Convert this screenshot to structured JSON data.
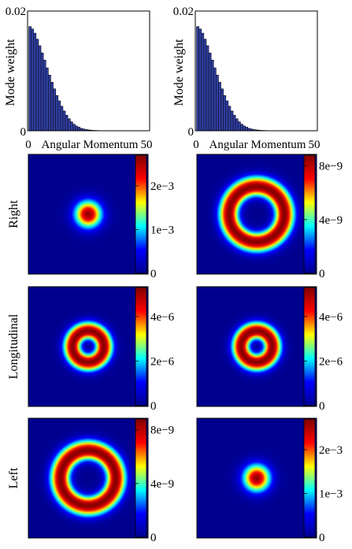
{
  "colors": {
    "bar_fill": "#2f3fa0",
    "bar_edge": "#0b0b1e",
    "colormap": [
      "#00008f",
      "#0000ff",
      "#00ffff",
      "#ffff00",
      "#ff0000",
      "#800000"
    ]
  },
  "chart_data": [
    {
      "type": "bar",
      "title": "",
      "xlabel": "Angular Momentum",
      "ylabel": "Mode weight",
      "xlim": [
        0,
        50
      ],
      "ylim": [
        0,
        0.02
      ],
      "x_ticks": [
        "0",
        "50"
      ],
      "y_ticks": [
        "0",
        "0.02"
      ],
      "grid": false,
      "categories": [
        1,
        2,
        3,
        4,
        5,
        6,
        7,
        8,
        9,
        10,
        11,
        12,
        13,
        14,
        15,
        16,
        17,
        18,
        19,
        20,
        21,
        22,
        23,
        24,
        25,
        26,
        27,
        28,
        29,
        30,
        31,
        32,
        33,
        34,
        35,
        36,
        37,
        38,
        39,
        40,
        41,
        42,
        43,
        44,
        45,
        46,
        47,
        48,
        49
      ],
      "values": [
        0.0174,
        0.017,
        0.0163,
        0.0153,
        0.0142,
        0.013,
        0.0118,
        0.0105,
        0.0093,
        0.0081,
        0.007,
        0.0059,
        0.005,
        0.0041,
        0.0033,
        0.0026,
        0.002,
        0.0015,
        0.0011,
        0.0008,
        0.0006,
        0.0004,
        0.0003,
        0.0002,
        0.00015,
        0.0001,
        7e-05,
        5e-05,
        3e-05,
        2e-05,
        1e-05,
        1e-05,
        1e-05,
        0,
        0,
        0,
        0,
        0,
        0,
        0,
        0,
        0,
        0,
        0,
        0,
        0,
        0,
        0,
        0
      ]
    },
    {
      "type": "bar",
      "title": "",
      "xlabel": "Angular Momentum",
      "ylabel": "Mode weight",
      "xlim": [
        0,
        50
      ],
      "ylim": [
        0,
        0.02
      ],
      "x_ticks": [
        "0",
        "50"
      ],
      "y_ticks": [
        "0",
        "0.02"
      ],
      "grid": false,
      "categories": [
        1,
        2,
        3,
        4,
        5,
        6,
        7,
        8,
        9,
        10,
        11,
        12,
        13,
        14,
        15,
        16,
        17,
        18,
        19,
        20,
        21,
        22,
        23,
        24,
        25,
        26,
        27,
        28,
        29,
        30,
        31,
        32,
        33,
        34,
        35,
        36,
        37,
        38,
        39,
        40,
        41,
        42,
        43,
        44,
        45,
        46,
        47,
        48,
        49
      ],
      "values": [
        0.0174,
        0.017,
        0.0163,
        0.0153,
        0.0142,
        0.013,
        0.0118,
        0.0105,
        0.0093,
        0.0081,
        0.007,
        0.0059,
        0.005,
        0.0041,
        0.0033,
        0.0026,
        0.002,
        0.0015,
        0.0011,
        0.0008,
        0.0006,
        0.0004,
        0.0003,
        0.0002,
        0.00015,
        0.0001,
        7e-05,
        5e-05,
        3e-05,
        2e-05,
        1e-05,
        1e-05,
        1e-05,
        0,
        0,
        0,
        0,
        0,
        0,
        0,
        0,
        0,
        0,
        0,
        0,
        0,
        0,
        0,
        0
      ]
    },
    {
      "type": "heatmap",
      "row_label": "Right",
      "pattern": "spot",
      "peak_radius": 0.0,
      "width": 0.22,
      "extent": 0.46,
      "colorbar_ticks": [
        "2e−3",
        "1e−3",
        "0"
      ],
      "colorbar_tick_values": [
        0.002,
        0.001,
        0
      ],
      "vmax": 0.0027
    },
    {
      "type": "heatmap",
      "row_label": "",
      "pattern": "ring",
      "peak_radius": 0.46,
      "width": 0.17,
      "extent": 0.86,
      "colorbar_ticks": [
        "8e−9",
        "4e−9",
        "0"
      ],
      "colorbar_tick_values": [
        8e-09,
        4e-09,
        0
      ],
      "vmax": 8.8e-09
    },
    {
      "type": "heatmap",
      "row_label": "Longitudinal",
      "pattern": "ring",
      "peak_radius": 0.26,
      "width": 0.15,
      "extent": 0.7,
      "colorbar_ticks": [
        "4e−6",
        "2e−6",
        "0"
      ],
      "colorbar_tick_values": [
        4e-06,
        2e-06,
        0
      ],
      "vmax": 5.3e-06
    },
    {
      "type": "heatmap",
      "row_label": "",
      "pattern": "ring",
      "peak_radius": 0.26,
      "width": 0.15,
      "extent": 0.7,
      "colorbar_ticks": [
        "4e−6",
        "2e−6",
        "0"
      ],
      "colorbar_tick_values": [
        4e-06,
        2e-06,
        0
      ],
      "vmax": 5.3e-06
    },
    {
      "type": "heatmap",
      "row_label": "Left",
      "pattern": "ring",
      "peak_radius": 0.46,
      "width": 0.17,
      "extent": 0.86,
      "colorbar_ticks": [
        "8e−9",
        "4e−9",
        "0"
      ],
      "colorbar_tick_values": [
        8e-09,
        4e-09,
        0
      ],
      "vmax": 8.8e-09
    },
    {
      "type": "heatmap",
      "row_label": "",
      "pattern": "spot",
      "peak_radius": 0.0,
      "width": 0.22,
      "extent": 0.46,
      "colorbar_ticks": [
        "2e−3",
        "1e−3",
        "0"
      ],
      "colorbar_tick_values": [
        0.002,
        0.001,
        0
      ],
      "vmax": 0.0027
    }
  ]
}
